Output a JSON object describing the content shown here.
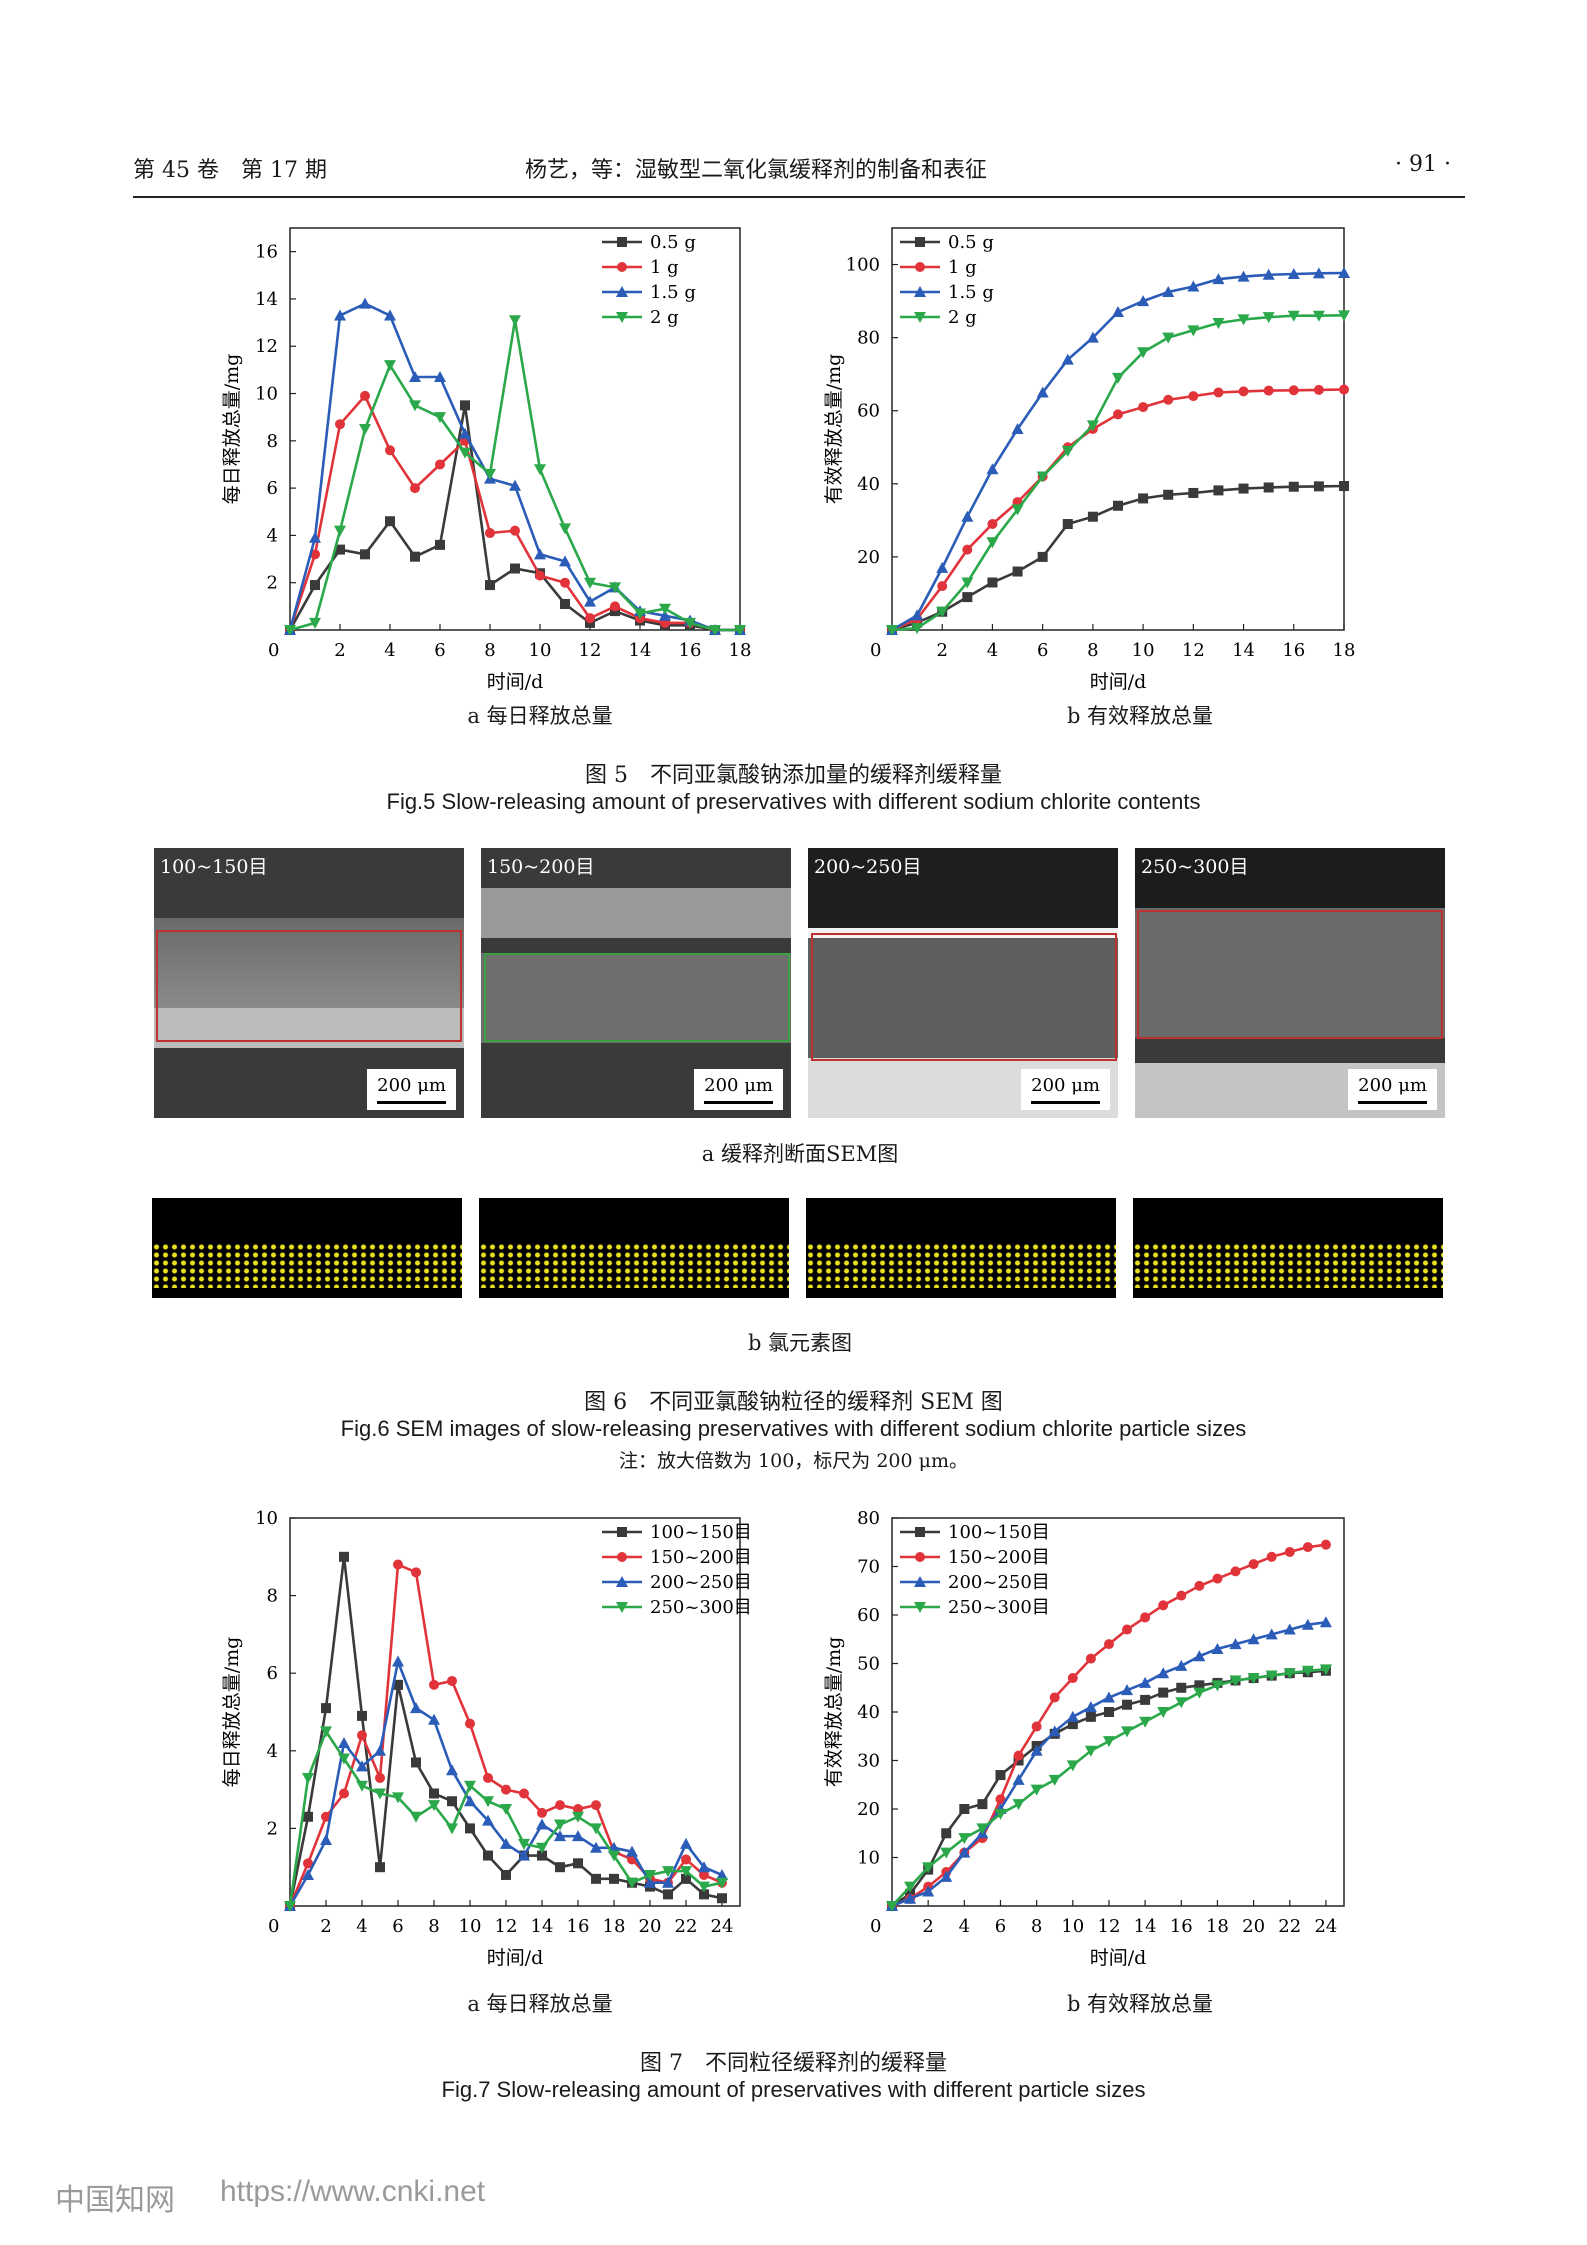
{
  "header": {
    "left": "第 45 卷　第 17 期",
    "center": "杨艺，等：湿敏型二氧化氯缓释剂的制备和表征",
    "right": "· 91 ·"
  },
  "fig5": {
    "caption_cn": "图 5　不同亚氯酸钠添加量的缓释剂缓释量",
    "caption_en": "Fig.5 Slow-releasing amount of preservatives with different sodium chlorite contents",
    "sub_a": "a  每日释放总量",
    "sub_b": "b  有效释放总量"
  },
  "fig6": {
    "caption_cn": "图 6　不同亚氯酸钠粒径的缓释剂 SEM 图",
    "caption_en": "Fig.6 SEM images of slow-releasing preservatives with different sodium chlorite particle sizes",
    "note": "注：放大倍数为 100，标尺为 200 μm。",
    "sub_a": "a  缓释剂断面SEM图",
    "sub_b": "b  氯元素图",
    "panel_labels": [
      "100~150目",
      "150~200目",
      "200~250目",
      "250~300目"
    ],
    "scale_label": "200 μm"
  },
  "fig7": {
    "caption_cn": "图 7　不同粒径缓释剂的缓释量",
    "caption_en": "Fig.7 Slow-releasing amount of preservatives with different particle sizes",
    "sub_a": "a  每日释放总量",
    "sub_b": "b  有效释放总量"
  },
  "footer": {
    "brand": "中国知网",
    "url": "https://www.cnki.net"
  },
  "chart_data": [
    {
      "id": "fig5a",
      "type": "line",
      "xlabel": "时间/d",
      "ylabel": "每日释放总量/mg",
      "xlim": [
        0,
        18
      ],
      "ylim": [
        0,
        17
      ],
      "xticks": [
        0,
        2,
        4,
        6,
        8,
        10,
        12,
        14,
        16,
        18
      ],
      "yticks": [
        2,
        4,
        6,
        8,
        10,
        12,
        14,
        16
      ],
      "legend": "top-right",
      "x": [
        0,
        1,
        2,
        3,
        4,
        5,
        6,
        7,
        8,
        9,
        10,
        11,
        12,
        13,
        14,
        15,
        16,
        17,
        18
      ],
      "series": [
        {
          "name": "0.5 g",
          "color": "#3a3a3a",
          "marker": "square",
          "values": [
            0,
            1.9,
            3.4,
            3.2,
            4.6,
            3.1,
            3.6,
            9.5,
            1.9,
            2.6,
            2.4,
            1.1,
            0.3,
            0.8,
            0.4,
            0.2,
            0.2,
            0,
            0
          ]
        },
        {
          "name": "1 g",
          "color": "#e0343a",
          "marker": "circle",
          "values": [
            0,
            3.2,
            8.7,
            9.9,
            7.6,
            6.0,
            7.0,
            8.0,
            4.1,
            4.2,
            2.3,
            2.0,
            0.5,
            1.0,
            0.5,
            0.3,
            0.3,
            0,
            0
          ]
        },
        {
          "name": "1.5 g",
          "color": "#2a5cb8",
          "marker": "triangle-up",
          "values": [
            0,
            3.9,
            13.3,
            13.8,
            13.3,
            10.7,
            10.7,
            8.3,
            6.4,
            6.1,
            3.2,
            2.9,
            1.2,
            1.8,
            0.8,
            0.6,
            0.4,
            0,
            0
          ]
        },
        {
          "name": "2 g",
          "color": "#2aa84a",
          "marker": "triangle-down",
          "values": [
            0,
            0.3,
            4.2,
            8.5,
            11.2,
            9.5,
            9.0,
            7.5,
            6.6,
            13.1,
            6.8,
            4.3,
            2.0,
            1.8,
            0.7,
            0.9,
            0.3,
            0,
            0
          ]
        }
      ]
    },
    {
      "id": "fig5b",
      "type": "line",
      "xlabel": "时间/d",
      "ylabel": "有效释放总量/mg",
      "xlim": [
        0,
        18
      ],
      "ylim": [
        0,
        110
      ],
      "xticks": [
        0,
        2,
        4,
        6,
        8,
        10,
        12,
        14,
        16,
        18
      ],
      "yticks": [
        20,
        40,
        60,
        80,
        100
      ],
      "legend": "top-left",
      "x": [
        0,
        1,
        2,
        3,
        4,
        5,
        6,
        7,
        8,
        9,
        10,
        11,
        12,
        13,
        14,
        15,
        16,
        17,
        18
      ],
      "series": [
        {
          "name": "0.5 g",
          "color": "#3a3a3a",
          "marker": "square",
          "values": [
            0,
            2,
            5,
            9,
            13,
            16,
            20,
            29,
            31,
            34,
            36,
            37,
            37.5,
            38.2,
            38.7,
            39,
            39.2,
            39.3,
            39.4
          ]
        },
        {
          "name": "1 g",
          "color": "#e0343a",
          "marker": "circle",
          "values": [
            0,
            3,
            12,
            22,
            29,
            35,
            42,
            50,
            55,
            59,
            61,
            63,
            64,
            65,
            65.3,
            65.5,
            65.6,
            65.7,
            65.8
          ]
        },
        {
          "name": "1.5 g",
          "color": "#2a5cb8",
          "marker": "triangle-up",
          "values": [
            0,
            4,
            17,
            31,
            44,
            55,
            65,
            74,
            80,
            87,
            90,
            92.5,
            94,
            96,
            96.7,
            97.2,
            97.4,
            97.6,
            97.7
          ]
        },
        {
          "name": "2 g",
          "color": "#2aa84a",
          "marker": "triangle-down",
          "values": [
            0,
            0.5,
            5,
            13,
            24,
            33,
            42,
            49,
            56,
            69,
            76,
            80,
            82,
            84,
            85,
            85.6,
            86,
            86,
            86.1
          ]
        }
      ]
    },
    {
      "id": "fig7a",
      "type": "line",
      "xlabel": "时间/d",
      "ylabel": "每日释放总量/mg",
      "xlim": [
        0,
        25
      ],
      "ylim": [
        0,
        10
      ],
      "xticks": [
        2,
        4,
        6,
        8,
        10,
        12,
        14,
        16,
        18,
        20,
        22,
        24
      ],
      "yticks": [
        2,
        4,
        6,
        8,
        10
      ],
      "legend": "top-right",
      "x": [
        0,
        1,
        2,
        3,
        4,
        5,
        6,
        7,
        8,
        9,
        10,
        11,
        12,
        13,
        14,
        15,
        16,
        17,
        18,
        19,
        20,
        21,
        22,
        23,
        24
      ],
      "series": [
        {
          "name": "100~150目",
          "color": "#3a3a3a",
          "marker": "square",
          "values": [
            0,
            2.3,
            5.1,
            9.0,
            4.9,
            1.0,
            5.7,
            3.7,
            2.9,
            2.7,
            2.0,
            1.3,
            0.8,
            1.3,
            1.3,
            1.0,
            1.1,
            0.7,
            0.7,
            0.6,
            0.5,
            0.3,
            0.7,
            0.3,
            0.2
          ]
        },
        {
          "name": "150~200目",
          "color": "#e0343a",
          "marker": "circle",
          "values": [
            0,
            1.1,
            2.3,
            2.9,
            4.4,
            3.3,
            8.8,
            8.6,
            5.7,
            5.8,
            4.7,
            3.3,
            3.0,
            2.9,
            2.4,
            2.6,
            2.5,
            2.6,
            1.4,
            1.2,
            0.7,
            0.6,
            1.2,
            0.8,
            0.6
          ]
        },
        {
          "name": "200~250目",
          "color": "#2a5cb8",
          "marker": "triangle-up",
          "values": [
            0,
            0.8,
            1.7,
            4.2,
            3.6,
            4.0,
            6.3,
            5.1,
            4.8,
            3.5,
            2.7,
            2.2,
            1.6,
            1.3,
            2.1,
            1.8,
            1.8,
            1.5,
            1.5,
            1.4,
            0.6,
            0.6,
            1.6,
            1.0,
            0.8
          ]
        },
        {
          "name": "250~300目",
          "color": "#2aa84a",
          "marker": "triangle-down",
          "values": [
            0,
            3.3,
            4.5,
            3.8,
            3.1,
            2.9,
            2.8,
            2.3,
            2.6,
            2.0,
            3.1,
            2.7,
            2.5,
            1.6,
            1.5,
            2.1,
            2.3,
            2.0,
            1.3,
            0.6,
            0.8,
            0.9,
            0.9,
            0.5,
            0.6
          ]
        }
      ]
    },
    {
      "id": "fig7b",
      "type": "line",
      "xlabel": "时间/d",
      "ylabel": "有效释放总量/mg",
      "xlim": [
        0,
        25
      ],
      "ylim": [
        0,
        80
      ],
      "xticks": [
        2,
        4,
        6,
        8,
        10,
        12,
        14,
        16,
        18,
        20,
        22,
        24
      ],
      "yticks": [
        10,
        20,
        30,
        40,
        50,
        60,
        70,
        80
      ],
      "legend": "top-left",
      "x": [
        0,
        1,
        2,
        3,
        4,
        5,
        6,
        7,
        8,
        9,
        10,
        11,
        12,
        13,
        14,
        15,
        16,
        17,
        18,
        19,
        20,
        21,
        22,
        23,
        24
      ],
      "series": [
        {
          "name": "100~150目",
          "color": "#3a3a3a",
          "marker": "square",
          "values": [
            0,
            2.5,
            7.5,
            15,
            20,
            21,
            27,
            30,
            33,
            35.5,
            37.5,
            39,
            40,
            41.5,
            42.5,
            44,
            45,
            45.5,
            46,
            46.5,
            47,
            47.5,
            48,
            48.2,
            48.5
          ]
        },
        {
          "name": "150~200目",
          "color": "#e0343a",
          "marker": "circle",
          "values": [
            0,
            1.5,
            4,
            7,
            11,
            14,
            22,
            31,
            37,
            43,
            47,
            51,
            54,
            57,
            59.5,
            62,
            64,
            66,
            67.5,
            69,
            70.5,
            72,
            73,
            74,
            74.5
          ]
        },
        {
          "name": "200~250目",
          "color": "#2a5cb8",
          "marker": "triangle-up",
          "values": [
            0,
            1.5,
            3,
            6,
            11,
            15,
            20,
            26,
            32,
            36,
            39,
            41,
            43,
            44.5,
            46,
            48,
            49.5,
            51.5,
            53,
            54,
            55,
            56,
            57,
            58,
            58.5
          ]
        },
        {
          "name": "250~300目",
          "color": "#2aa84a",
          "marker": "triangle-down",
          "values": [
            0,
            4,
            8,
            11,
            14,
            16,
            19,
            21,
            24,
            26,
            29,
            32,
            34,
            36,
            38,
            40,
            42,
            44,
            45.5,
            46.5,
            47,
            47.5,
            48,
            48.5,
            48.8
          ]
        }
      ]
    }
  ]
}
